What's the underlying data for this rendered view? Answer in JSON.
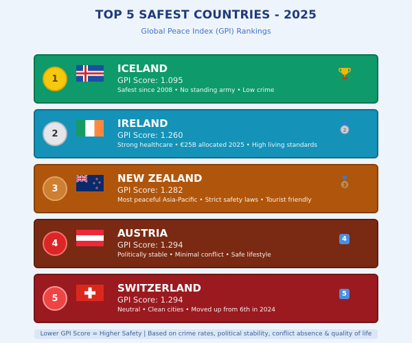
{
  "title": "TOP 5 SAFEST COUNTRIES - 2025",
  "subtitle": "Global Peace Index (GPI) Rankings",
  "countries": [
    {
      "rank": "1",
      "name": "ICELAND",
      "score": "GPI Score: 1.095",
      "facts": "Safest since 2008 • No standing army • Low crime",
      "icon": "trophy-icon",
      "color": "#0f9a6c"
    },
    {
      "rank": "2",
      "name": "IRELAND",
      "score": "GPI Score: 1.260",
      "facts": "Strong healthcare • €25B allocated 2025 • High living standards",
      "icon": "silver-medal-icon",
      "color": "#1592b8"
    },
    {
      "rank": "3",
      "name": "NEW ZEALAND",
      "score": "GPI Score: 1.282",
      "facts": "Most peaceful Asia-Pacific • Strict safety laws • Tourist friendly",
      "icon": "bronze-medal-icon",
      "color": "#b0560c"
    },
    {
      "rank": "4",
      "name": "AUSTRIA",
      "score": "GPI Score: 1.294",
      "facts": "Politically stable • Minimal conflict • Safe lifestyle",
      "icon": "number-4-icon",
      "icon_label": "4",
      "color": "#7a2a12"
    },
    {
      "rank": "5",
      "name": "SWITZERLAND",
      "score": "GPI Score: 1.294",
      "facts": "Neutral • Clean cities • Moved up from 6th in 2024",
      "icon": "number-5-icon",
      "icon_label": "5",
      "color": "#9a1a1f"
    }
  ],
  "footer": "Lower GPI Score = Higher Safety | Based on crime rates, political stability, conflict absence & quality of life"
}
